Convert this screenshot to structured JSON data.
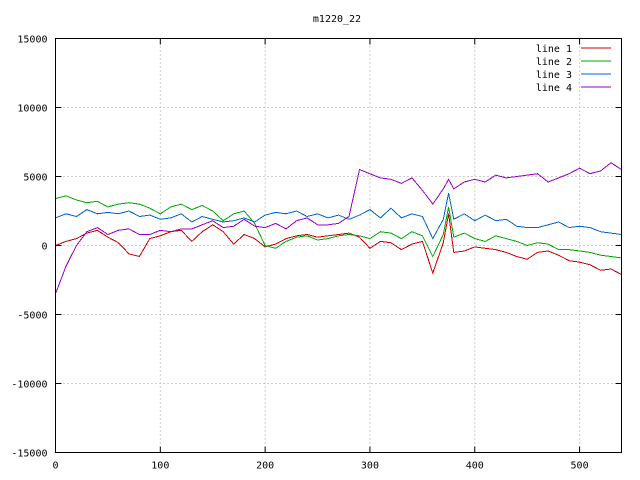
{
  "chart_data": {
    "type": "line",
    "title": "m1220_22",
    "xlabel": "",
    "ylabel": "",
    "xlim": [
      0,
      540
    ],
    "ylim": [
      -15000,
      15000
    ],
    "x_ticks": [
      0,
      100,
      200,
      300,
      400,
      500
    ],
    "y_ticks": [
      -15000,
      -10000,
      -5000,
      0,
      5000,
      10000,
      15000
    ],
    "grid": true,
    "legend_position": "top-right",
    "x": [
      0,
      10,
      20,
      30,
      40,
      50,
      60,
      70,
      80,
      90,
      100,
      110,
      120,
      130,
      140,
      150,
      160,
      170,
      180,
      190,
      200,
      210,
      220,
      230,
      240,
      250,
      260,
      270,
      280,
      290,
      300,
      310,
      320,
      330,
      340,
      350,
      360,
      370,
      375,
      380,
      390,
      400,
      410,
      420,
      430,
      440,
      450,
      460,
      470,
      480,
      490,
      500,
      510,
      520,
      530,
      540
    ],
    "series": [
      {
        "name": "line 1",
        "color": "#cc0000",
        "values": [
          0,
          300,
          500,
          900,
          1100,
          600,
          200,
          -600,
          -800,
          500,
          700,
          1000,
          1100,
          300,
          1000,
          1500,
          1000,
          100,
          800,
          500,
          -100,
          100,
          500,
          700,
          800,
          600,
          700,
          800,
          900,
          600,
          -200,
          300,
          200,
          -300,
          100,
          300,
          -2000,
          200,
          2300,
          -500,
          -400,
          -100,
          -200,
          -300,
          -500,
          -800,
          -1000,
          -500,
          -400,
          -700,
          -1100,
          -1200,
          -1400,
          -1800,
          -1700,
          -2100
        ]
      },
      {
        "name": "line 2",
        "color": "#00aa00",
        "values": [
          3400,
          3600,
          3300,
          3100,
          3200,
          2800,
          3000,
          3100,
          3000,
          2700,
          2300,
          2800,
          3000,
          2600,
          2900,
          2500,
          1800,
          2300,
          2500,
          1600,
          0,
          -200,
          300,
          600,
          700,
          400,
          500,
          700,
          800,
          700,
          500,
          1000,
          900,
          500,
          1000,
          700,
          -800,
          800,
          2800,
          600,
          900,
          500,
          300,
          700,
          500,
          300,
          0,
          200,
          100,
          -300,
          -300,
          -400,
          -500,
          -700,
          -800,
          -900
        ]
      },
      {
        "name": "line 3",
        "color": "#0066cc",
        "values": [
          2000,
          2300,
          2100,
          2600,
          2300,
          2400,
          2300,
          2500,
          2100,
          2200,
          1900,
          2000,
          2300,
          1700,
          2100,
          1900,
          1700,
          1800,
          2000,
          1700,
          2200,
          2400,
          2300,
          2500,
          2100,
          2300,
          2000,
          2200,
          1900,
          2200,
          2600,
          2000,
          2700,
          2000,
          2300,
          2100,
          500,
          1900,
          3800,
          1900,
          2300,
          1800,
          2200,
          1800,
          1900,
          1400,
          1300,
          1300,
          1500,
          1700,
          1300,
          1400,
          1300,
          1000,
          900,
          800
        ]
      },
      {
        "name": "line 4",
        "color": "#9900cc",
        "values": [
          -3500,
          -1500,
          0,
          1000,
          1300,
          800,
          1100,
          1200,
          800,
          800,
          1100,
          1000,
          1200,
          1200,
          1500,
          1800,
          1300,
          1400,
          1900,
          1400,
          1300,
          1600,
          1200,
          1800,
          2000,
          1500,
          1500,
          1600,
          2100,
          5500,
          5200,
          4900,
          4800,
          4500,
          4900,
          4000,
          3000,
          4100,
          4800,
          4100,
          4600,
          4800,
          4600,
          5100,
          4900,
          5000,
          5100,
          5200,
          4600,
          4900,
          5200,
          5600,
          5200,
          5400,
          6000,
          5500
        ]
      }
    ]
  }
}
